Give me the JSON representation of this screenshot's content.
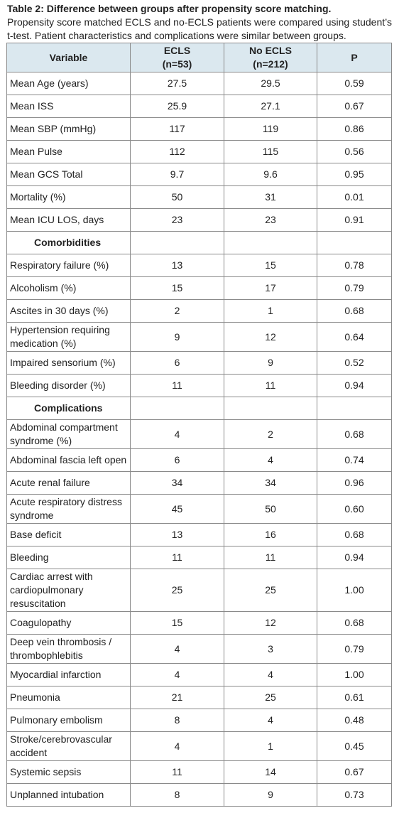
{
  "caption": {
    "title": "Table 2: Difference between groups after propensity score matching.",
    "text": "Propensity score matched ECLS and no-ECLS patients were compared using student’s t-test. Patient characteristics and complications were similar between groups."
  },
  "table": {
    "header": [
      [
        "Variable"
      ],
      [
        "ECLS",
        "(n=53)"
      ],
      [
        "No ECLS",
        "(n=212)"
      ],
      [
        "P"
      ]
    ],
    "rows": [
      [
        "Mean Age (years)",
        "27.5",
        "29.5",
        "0.59"
      ],
      [
        "Mean ISS",
        "25.9",
        "27.1",
        "0.67"
      ],
      [
        "Mean SBP (mmHg)",
        "117",
        "119",
        "0.86"
      ],
      [
        "Mean Pulse",
        "112",
        "115",
        "0.56"
      ],
      [
        "Mean GCS Total",
        "9.7",
        "9.6",
        "0.95"
      ],
      [
        "Mortality (%)",
        "50",
        "31",
        "0.01"
      ],
      [
        "Mean ICU LOS, days",
        "23",
        "23",
        "0.91"
      ],
      [
        "Comorbidities"
      ],
      [
        "Respiratory failure (%)",
        "13",
        "15",
        "0.78"
      ],
      [
        "Alcoholism (%)",
        "15",
        "17",
        "0.79"
      ],
      [
        "Ascites in 30 days (%)",
        "2",
        "1",
        "0.68"
      ],
      [
        "Hypertension requiring medication (%)",
        "9",
        "12",
        "0.64"
      ],
      [
        "Impaired sensorium (%)",
        "6",
        "9",
        "0.52"
      ],
      [
        "Bleeding disorder (%)",
        "11",
        "11",
        "0.94"
      ],
      [
        "Complications"
      ],
      [
        "Abdominal compartment syndrome (%)",
        "4",
        "2",
        "0.68"
      ],
      [
        "Abdominal fascia left open",
        "6",
        "4",
        "0.74"
      ],
      [
        "Acute renal failure",
        "34",
        "34",
        "0.96"
      ],
      [
        "Acute respiratory distress syndrome",
        "45",
        "50",
        "0.60"
      ],
      [
        "Base deficit",
        "13",
        "16",
        "0.68"
      ],
      [
        "Bleeding",
        "11",
        "11",
        "0.94"
      ],
      [
        "Cardiac arrest with cardiopulmonary resuscitation",
        "25",
        "25",
        "1.00"
      ],
      [
        "Coagulopathy",
        "15",
        "12",
        "0.68"
      ],
      [
        "Deep vein thrombosis / thrombophlebitis",
        "4",
        "3",
        "0.79"
      ],
      [
        "Myocardial infarction",
        "4",
        "4",
        "1.00"
      ],
      [
        "Pneumonia",
        "21",
        "25",
        "0.61"
      ],
      [
        "Pulmonary embolism",
        "8",
        "4",
        "0.48"
      ],
      [
        "Stroke/cerebrovascular accident",
        "4",
        "1",
        "0.45"
      ],
      [
        "Systemic sepsis",
        "11",
        "14",
        "0.67"
      ],
      [
        "Unplanned intubation",
        "8",
        "9",
        "0.73"
      ]
    ]
  }
}
